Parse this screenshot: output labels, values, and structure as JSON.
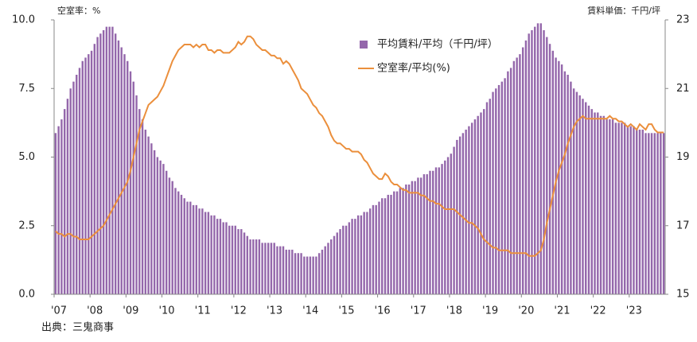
{
  "chart_data": {
    "type": "bar",
    "y_axis_label": "空室率：%",
    "y2_axis_label": "賃料単価：千円/坪",
    "source": "出典：三鬼商事",
    "categories": [
      "'07",
      null,
      null,
      null,
      null,
      null,
      null,
      null,
      null,
      null,
      null,
      null,
      "'08",
      null,
      null,
      null,
      null,
      null,
      null,
      null,
      null,
      null,
      null,
      null,
      "'09",
      null,
      null,
      null,
      null,
      null,
      null,
      null,
      null,
      null,
      null,
      null,
      "'10",
      null,
      null,
      null,
      null,
      null,
      null,
      null,
      null,
      null,
      null,
      null,
      "'11",
      null,
      null,
      null,
      null,
      null,
      null,
      null,
      null,
      null,
      null,
      null,
      "'12",
      null,
      null,
      null,
      null,
      null,
      null,
      null,
      null,
      null,
      null,
      null,
      "'13",
      null,
      null,
      null,
      null,
      null,
      null,
      null,
      null,
      null,
      null,
      null,
      "'14",
      null,
      null,
      null,
      null,
      null,
      null,
      null,
      null,
      null,
      null,
      null,
      "'15",
      null,
      null,
      null,
      null,
      null,
      null,
      null,
      null,
      null,
      null,
      null,
      "'16",
      null,
      null,
      null,
      null,
      null,
      null,
      null,
      null,
      null,
      null,
      null,
      "'17",
      null,
      null,
      null,
      null,
      null,
      null,
      null,
      null,
      null,
      null,
      null,
      "'18",
      null,
      null,
      null,
      null,
      null,
      null,
      null,
      null,
      null,
      null,
      null,
      "'19",
      null,
      null,
      null,
      null,
      null,
      null,
      null,
      null,
      null,
      null,
      null,
      "'20",
      null,
      null,
      null,
      null,
      null,
      null,
      null,
      null,
      null,
      null,
      null,
      "'21",
      null,
      null,
      null,
      null,
      null,
      null,
      null,
      null,
      null,
      null,
      null,
      "'22",
      null,
      null,
      null,
      null,
      null,
      null,
      null,
      null,
      null,
      null,
      null,
      "'23",
      null,
      null,
      null,
      null,
      null,
      null,
      null,
      null,
      null,
      null,
      null
    ],
    "series": [
      {
        "name": "平均賃料/平均（千円/坪）",
        "type": "bar",
        "axis": "y2",
        "color": "#9467ab",
        "values": [
          19.7,
          19.9,
          20.1,
          20.4,
          20.7,
          21.0,
          21.2,
          21.4,
          21.6,
          21.8,
          21.9,
          22.0,
          22.1,
          22.3,
          22.5,
          22.6,
          22.7,
          22.8,
          22.8,
          22.8,
          22.6,
          22.4,
          22.2,
          22.0,
          21.8,
          21.5,
          21.2,
          20.8,
          20.4,
          20.1,
          19.8,
          19.6,
          19.4,
          19.2,
          19.0,
          18.9,
          18.8,
          18.6,
          18.4,
          18.3,
          18.1,
          18.0,
          17.9,
          17.8,
          17.7,
          17.7,
          17.6,
          17.6,
          17.5,
          17.5,
          17.4,
          17.4,
          17.3,
          17.3,
          17.2,
          17.2,
          17.1,
          17.1,
          17.0,
          17.0,
          17.0,
          16.9,
          16.9,
          16.8,
          16.7,
          16.6,
          16.6,
          16.6,
          16.6,
          16.5,
          16.5,
          16.5,
          16.5,
          16.5,
          16.4,
          16.4,
          16.4,
          16.3,
          16.3,
          16.3,
          16.2,
          16.2,
          16.2,
          16.1,
          16.1,
          16.1,
          16.1,
          16.1,
          16.2,
          16.3,
          16.4,
          16.5,
          16.6,
          16.7,
          16.8,
          16.9,
          17.0,
          17.0,
          17.1,
          17.2,
          17.2,
          17.3,
          17.3,
          17.4,
          17.4,
          17.5,
          17.6,
          17.6,
          17.7,
          17.8,
          17.8,
          17.9,
          17.9,
          18.0,
          18.0,
          18.1,
          18.1,
          18.2,
          18.2,
          18.3,
          18.3,
          18.4,
          18.4,
          18.5,
          18.5,
          18.6,
          18.6,
          18.7,
          18.7,
          18.8,
          18.9,
          19.0,
          19.1,
          19.3,
          19.5,
          19.6,
          19.7,
          19.8,
          19.9,
          20.0,
          20.1,
          20.2,
          20.3,
          20.4,
          20.6,
          20.7,
          20.9,
          21.0,
          21.1,
          21.2,
          21.3,
          21.5,
          21.6,
          21.8,
          21.9,
          22.0,
          22.2,
          22.4,
          22.6,
          22.7,
          22.8,
          22.9,
          22.9,
          22.7,
          22.5,
          22.3,
          22.1,
          21.9,
          21.8,
          21.7,
          21.5,
          21.4,
          21.2,
          21.0,
          20.9,
          20.8,
          20.7,
          20.6,
          20.5,
          20.4,
          20.3,
          20.3,
          20.2,
          20.2,
          20.1,
          20.1,
          20.1,
          20.0,
          20.0,
          20.0,
          20.0,
          19.9,
          19.9,
          19.9,
          19.8,
          19.8,
          19.8,
          19.7,
          19.7,
          19.7,
          19.7,
          19.7,
          19.7,
          19.7
        ]
      },
      {
        "name": "空室率/平均(%)",
        "type": "line",
        "color": "#eb8f3c",
        "values": [
          2.3,
          2.2,
          2.2,
          2.1,
          2.2,
          2.2,
          2.1,
          2.1,
          2.0,
          2.0,
          2.0,
          2.0,
          2.1,
          2.2,
          2.3,
          2.4,
          2.5,
          2.7,
          2.9,
          3.1,
          3.3,
          3.5,
          3.7,
          3.9,
          4.1,
          4.5,
          5.0,
          5.5,
          6.0,
          6.3,
          6.6,
          6.9,
          7.0,
          7.1,
          7.2,
          7.4,
          7.6,
          7.9,
          8.2,
          8.5,
          8.7,
          8.9,
          9.0,
          9.1,
          9.1,
          9.1,
          9.0,
          9.1,
          9.0,
          9.1,
          9.1,
          8.9,
          8.9,
          8.8,
          8.9,
          8.9,
          8.8,
          8.8,
          8.8,
          8.9,
          9.0,
          9.2,
          9.1,
          9.2,
          9.4,
          9.4,
          9.3,
          9.1,
          9.0,
          8.9,
          8.9,
          8.8,
          8.7,
          8.7,
          8.6,
          8.6,
          8.4,
          8.5,
          8.4,
          8.2,
          8.0,
          7.8,
          7.5,
          7.4,
          7.3,
          7.1,
          6.9,
          6.8,
          6.6,
          6.5,
          6.3,
          6.1,
          5.8,
          5.6,
          5.5,
          5.5,
          5.4,
          5.3,
          5.3,
          5.2,
          5.2,
          5.2,
          5.1,
          4.9,
          4.8,
          4.6,
          4.4,
          4.3,
          4.2,
          4.2,
          4.4,
          4.3,
          4.1,
          4.0,
          4.0,
          3.9,
          3.8,
          3.8,
          3.7,
          3.7,
          3.7,
          3.7,
          3.6,
          3.6,
          3.5,
          3.4,
          3.4,
          3.3,
          3.3,
          3.2,
          3.1,
          3.1,
          3.1,
          3.1,
          3.0,
          2.9,
          2.8,
          2.7,
          2.6,
          2.6,
          2.5,
          2.4,
          2.2,
          2.0,
          1.9,
          1.8,
          1.7,
          1.7,
          1.6,
          1.6,
          1.6,
          1.6,
          1.5,
          1.5,
          1.5,
          1.5,
          1.5,
          1.5,
          1.4,
          1.4,
          1.4,
          1.5,
          1.6,
          2.0,
          2.6,
          3.1,
          3.6,
          4.1,
          4.5,
          4.8,
          5.1,
          5.5,
          5.8,
          6.1,
          6.3,
          6.4,
          6.5,
          6.4,
          6.4,
          6.4,
          6.4,
          6.4,
          6.4,
          6.4,
          6.4,
          6.5,
          6.4,
          6.4,
          6.3,
          6.3,
          6.2,
          6.1,
          6.2,
          6.1,
          6.0,
          6.2,
          6.1,
          6.0,
          6.2,
          6.2,
          6.0,
          5.9,
          5.9,
          5.9
        ]
      }
    ],
    "ylim": [
      0,
      10
    ],
    "yticks": [
      {
        "value": 0,
        "label": "0.0"
      },
      {
        "value": 2.5,
        "label": "2.5"
      },
      {
        "value": 5,
        "label": "5.0"
      },
      {
        "value": 7.5,
        "label": "7.5"
      },
      {
        "value": 10,
        "label": "10.0"
      }
    ],
    "y2lim": [
      15,
      23
    ],
    "y2ticks": [
      15,
      17,
      19,
      21,
      23
    ],
    "grid": false,
    "legend": "top-center"
  }
}
